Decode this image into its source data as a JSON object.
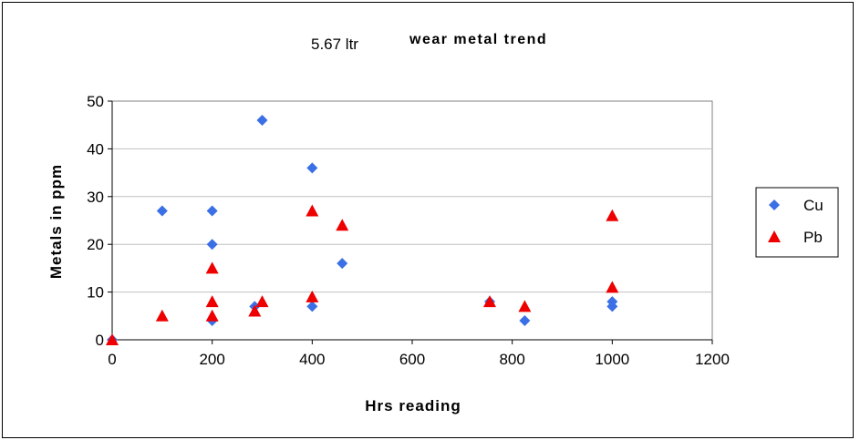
{
  "chart_data": {
    "type": "scatter",
    "title_prefix": "5.67 ltr",
    "title": "wear metal trend",
    "xlabel": "Hrs reading",
    "ylabel": "Metals in ppm",
    "xlim": [
      0,
      1200
    ],
    "ylim": [
      0,
      50
    ],
    "xticks": [
      0,
      200,
      400,
      600,
      800,
      1000,
      1200
    ],
    "yticks": [
      0,
      10,
      20,
      30,
      40,
      50
    ],
    "grid": "horizontal",
    "legend_position": "right",
    "series": [
      {
        "name": "Cu",
        "marker": "diamond",
        "color": "#3a6fe6",
        "points": [
          [
            0,
            0
          ],
          [
            100,
            27
          ],
          [
            200,
            4
          ],
          [
            200,
            20
          ],
          [
            200,
            27
          ],
          [
            285,
            7
          ],
          [
            300,
            46
          ],
          [
            400,
            7
          ],
          [
            400,
            36
          ],
          [
            460,
            16
          ],
          [
            755,
            8
          ],
          [
            825,
            4
          ],
          [
            1000,
            7
          ],
          [
            1000,
            8
          ]
        ]
      },
      {
        "name": "Pb",
        "marker": "triangle",
        "color": "#ee0000",
        "points": [
          [
            0,
            0
          ],
          [
            100,
            5
          ],
          [
            200,
            5
          ],
          [
            200,
            8
          ],
          [
            200,
            15
          ],
          [
            285,
            6
          ],
          [
            300,
            8
          ],
          [
            400,
            9
          ],
          [
            400,
            27
          ],
          [
            460,
            24
          ],
          [
            755,
            8
          ],
          [
            825,
            7
          ],
          [
            1000,
            11
          ],
          [
            1000,
            26
          ]
        ]
      }
    ]
  }
}
